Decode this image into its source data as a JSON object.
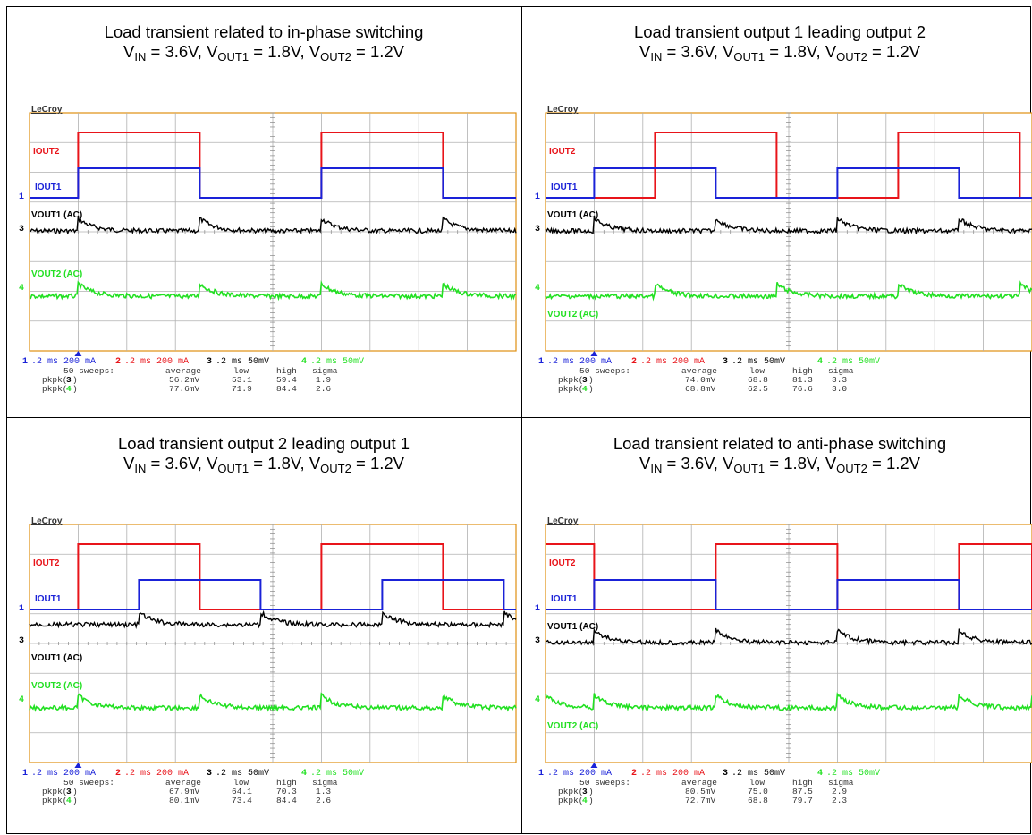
{
  "chart_data": [
    {
      "type": "line",
      "title": "Load transient related to in-phase switching",
      "conditions": {
        "vin": "3.6V",
        "vout1": "1.8V",
        "vout2": "1.2V"
      },
      "brand": "LeCroy",
      "trace_labels": {
        "iout2": "IOUT2",
        "iout1": "IOUT1",
        "vout1": "VOUT1 (AC)",
        "vout2": "VOUT2 (AC)"
      },
      "iout2_pulses": [
        [
          0.2,
          0.7
        ],
        [
          1.2,
          1.7
        ]
      ],
      "iout1_pulses": [
        [
          0.2,
          0.7
        ],
        [
          1.2,
          1.7
        ]
      ],
      "vout1_pos": "top",
      "vout2_pos": "top",
      "stats_rows": [
        {
          "label": "pkpk",
          "ch": "3",
          "average": "56.2mV",
          "low": "53.1",
          "high": "59.4",
          "sigma": "1.9"
        },
        {
          "label": "pkpk",
          "ch": "4",
          "average": "77.6mV",
          "low": "71.9",
          "high": "84.4",
          "sigma": "2.6"
        }
      ]
    },
    {
      "type": "line",
      "title": "Load transient output 1 leading output 2",
      "conditions": {
        "vin": "3.6V",
        "vout1": "1.8V",
        "vout2": "1.2V"
      },
      "brand": "LeCroy",
      "trace_labels": {
        "iout2": "IOUT2",
        "iout1": "IOUT1",
        "vout1": "VOUT1 (AC)",
        "vout2": "VOUT2 (AC)"
      },
      "iout2_pulses": [
        [
          0.45,
          0.95
        ],
        [
          1.45,
          1.95
        ]
      ],
      "iout1_pulses": [
        [
          0.2,
          0.7
        ],
        [
          1.2,
          1.7
        ]
      ],
      "vout1_pos": "top",
      "vout2_pos": "bottom",
      "stats_rows": [
        {
          "label": "pkpk",
          "ch": "3",
          "average": "74.0mV",
          "low": "68.8",
          "high": "81.3",
          "sigma": "3.3"
        },
        {
          "label": "pkpk",
          "ch": "4",
          "average": "68.8mV",
          "low": "62.5",
          "high": "76.6",
          "sigma": "3.0"
        }
      ]
    },
    {
      "type": "line",
      "title": "Load transient output 2 leading output 1",
      "conditions": {
        "vin": "3.6V",
        "vout1": "1.8V",
        "vout2": "1.2V"
      },
      "brand": "LeCroy",
      "trace_labels": {
        "iout2": "IOUT2",
        "iout1": "IOUT1",
        "vout1": "VOUT1 (AC)",
        "vout2": "VOUT2 (AC)"
      },
      "iout2_pulses": [
        [
          0.2,
          0.7
        ],
        [
          1.2,
          1.7
        ]
      ],
      "iout1_pulses": [
        [
          0.45,
          0.95
        ],
        [
          1.45,
          1.95
        ]
      ],
      "vout1_pos": "bottom",
      "vout2_pos": "top",
      "stats_rows": [
        {
          "label": "pkpk",
          "ch": "3",
          "average": "67.9mV",
          "low": "64.1",
          "high": "70.3",
          "sigma": "1.3"
        },
        {
          "label": "pkpk",
          "ch": "4",
          "average": "80.1mV",
          "low": "73.4",
          "high": "84.4",
          "sigma": "2.6"
        }
      ]
    },
    {
      "type": "line",
      "title": "Load transient related to anti-phase switching",
      "conditions": {
        "vin": "3.6V",
        "vout1": "1.8V",
        "vout2": "1.2V"
      },
      "brand": "LeCroy",
      "trace_labels": {
        "iout2": "IOUT2",
        "iout1": "IOUT1",
        "vout1": "VOUT1 (AC)",
        "vout2": "VOUT2 (AC)"
      },
      "iout2_pulses": [
        [
          0.0,
          0.2
        ],
        [
          0.7,
          1.2
        ],
        [
          1.7,
          2.0
        ]
      ],
      "iout1_pulses": [
        [
          0.2,
          0.7
        ],
        [
          1.2,
          1.7
        ]
      ],
      "vout1_pos": "top",
      "vout2_pos": "bottom",
      "stats_rows": [
        {
          "label": "pkpk",
          "ch": "3",
          "average": "80.5mV",
          "low": "75.0",
          "high": "87.5",
          "sigma": "2.9"
        },
        {
          "label": "pkpk",
          "ch": "4",
          "average": "72.7mV",
          "low": "68.8",
          "high": "79.7",
          "sigma": "2.3"
        }
      ]
    }
  ],
  "scope_settings": {
    "ch1": "1",
    "ch1_time": ".2 ms",
    "ch1_scale": "200 mA",
    "ch2": "2",
    "ch2_time": ".2 ms",
    "ch2_scale": "200 mA",
    "ch3": "3",
    "ch3_time": ".2 ms",
    "ch3_scale": "50mV",
    "ch4": "4",
    "ch4_time": ".2 ms",
    "ch4_scale": "50mV",
    "sweeps": "50 sweeps:",
    "columns": [
      "average",
      "low",
      "high",
      "sigma"
    ]
  },
  "colors": {
    "iout2": "#e8141a",
    "iout1": "#1a22d8",
    "vout1": "#000000",
    "vout2": "#22e022",
    "grid": "#b0b0b0",
    "frame": "#e09010"
  }
}
